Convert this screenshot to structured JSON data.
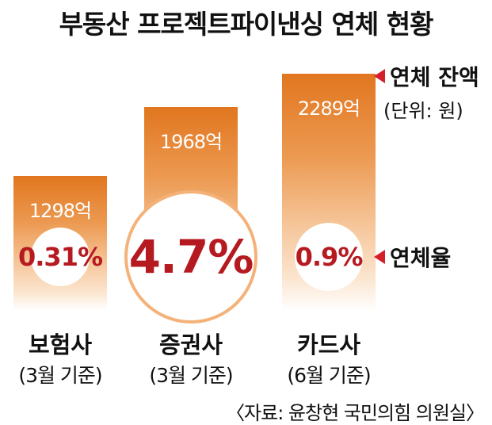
{
  "chart_data": {
    "type": "bar",
    "title": "부동산 프로젝트파이낸싱 연체 현황",
    "categories": [
      "보험사",
      "증권사",
      "카드사"
    ],
    "category_notes": [
      "(3월 기준)",
      "(3월 기준)",
      "(6월 기준)"
    ],
    "series": [
      {
        "name": "연체 잔액",
        "values": [
          1298,
          1968,
          2289
        ],
        "labels": [
          "1298억",
          "1968억",
          "2289억"
        ]
      },
      {
        "name": "연체율",
        "values": [
          0.31,
          4.7,
          0.9
        ],
        "labels": [
          "0.31%",
          "4.7%",
          "0.9%"
        ]
      }
    ],
    "ylim": [
      0,
      2600
    ],
    "unit_note": "(단위: 원)",
    "legend": {
      "balance_label": "연체 잔액",
      "rate_label": "연체율",
      "placement": "right"
    },
    "source": "〈자료: 윤창현 국민의힘 의원실〉",
    "colors": {
      "bar": "#e1761f",
      "rate_text": "#b61a21",
      "marker": "#d4202b",
      "big_circle_border": "#f4b27a"
    }
  }
}
